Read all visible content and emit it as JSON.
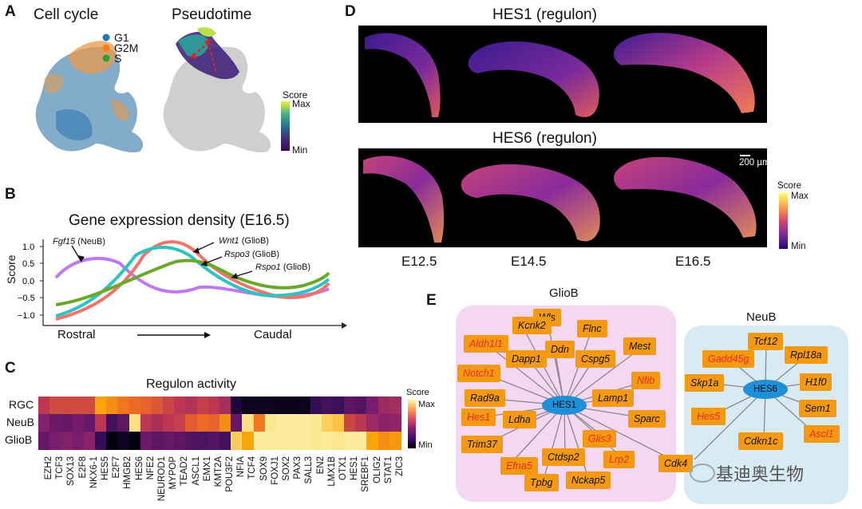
{
  "panel_letters": {
    "a": "A",
    "b": "B",
    "c": "C",
    "d": "D",
    "e": "E"
  },
  "panelA": {
    "cell_cycle_title": "Cell cycle",
    "pseudotime_title": "Pseudotime",
    "legend": [
      {
        "label": "G1",
        "color": "#1f77b4"
      },
      {
        "label": "G2M",
        "color": "#ff7f0e"
      },
      {
        "label": "S",
        "color": "#2ca02c"
      }
    ],
    "score_title": "Score",
    "score_max": "Max",
    "score_min": "Min"
  },
  "panelB": {
    "title": "Gene expression density (E16.5)",
    "ylabel": "Score",
    "xlabel_left": "Rostral",
    "xlabel_right": "Caudal",
    "annotations": [
      {
        "gene": "Fgf15",
        "group": " (NeuB)"
      },
      {
        "gene": "Wnt1",
        "group": " (GlioB)"
      },
      {
        "gene": "Rspo3",
        "group": " (GlioB)"
      },
      {
        "gene": "Rspo1",
        "group": " (GlioB)"
      }
    ]
  },
  "panelC": {
    "title": "Regulon activity",
    "rows": [
      "RGC",
      "NeuB",
      "GlioB"
    ],
    "columns": [
      "EZH2",
      "TCF3",
      "SOX13",
      "E2F8",
      "NKX6-1",
      "HES5",
      "E2F7",
      "HMGB2",
      "HES6",
      "NFE2",
      "NEUROD1",
      "MYPOP",
      "TEAD2",
      "ASCL1",
      "EMX1",
      "KMT2A",
      "POU3F2",
      "NFIA",
      "TCF4",
      "SOX9",
      "FOXJ1",
      "SOX2",
      "PAX3",
      "SALL3",
      "EN2",
      "LMX1B",
      "OTX1",
      "HES1",
      "SREBF1",
      "OLIG2",
      "STAT1",
      "ZIC3"
    ],
    "values": [
      [
        0.55,
        0.62,
        0.62,
        0.62,
        0.62,
        0.85,
        0.8,
        0.75,
        0.72,
        0.7,
        0.66,
        0.6,
        0.55,
        0.52,
        0.58,
        0.55,
        0.48,
        0.1,
        0.05,
        0.05,
        0.05,
        0.04,
        0.04,
        0.05,
        0.18,
        0.22,
        0.2,
        0.28,
        0.26,
        0.35,
        0.45,
        0.48
      ],
      [
        0.38,
        0.32,
        0.3,
        0.34,
        0.3,
        0.55,
        0.22,
        0.28,
        0.95,
        0.55,
        0.5,
        0.55,
        0.58,
        0.68,
        0.72,
        0.7,
        0.8,
        0.3,
        0.95,
        0.75,
        0.96,
        0.97,
        0.97,
        0.97,
        0.96,
        0.92,
        0.9,
        0.6,
        0.55,
        0.45,
        0.4,
        0.42
      ],
      [
        0.3,
        0.35,
        0.38,
        0.35,
        0.4,
        0.18,
        0.02,
        0.06,
        0.02,
        0.32,
        0.28,
        0.3,
        0.28,
        0.25,
        0.24,
        0.26,
        0.22,
        0.92,
        0.85,
        0.97,
        0.97,
        0.97,
        0.97,
        0.97,
        0.96,
        0.97,
        0.96,
        0.97,
        0.97,
        0.85,
        0.8,
        0.82
      ]
    ],
    "score_title": "Score",
    "score_max": "Max",
    "score_min": "Min"
  },
  "panelD": {
    "title_top": "HES1 (regulon)",
    "title_bottom": "HES6 (regulon)",
    "scalebar": "200 µm",
    "stages": [
      "E12.5",
      "E14.5",
      "E16.5"
    ],
    "score_title": "Score",
    "score_max": "Max",
    "score_min": "Min"
  },
  "panelE": {
    "glio_title": "GlioB",
    "neu_title": "NeuB",
    "hes1": "HES1",
    "hes6": "HES6",
    "glio_nodes": [
      {
        "label": "Wls",
        "red": false
      },
      {
        "label": "Kcnk2",
        "red": false
      },
      {
        "label": "Flnc",
        "red": false
      },
      {
        "label": "Aldh1l1",
        "red": true
      },
      {
        "label": "Ddn",
        "red": false
      },
      {
        "label": "Mest",
        "red": false
      },
      {
        "label": "Dapp1",
        "red": false
      },
      {
        "label": "Cspg5",
        "red": false
      },
      {
        "label": "Notch1",
        "red": true
      },
      {
        "label": "Nfib",
        "red": true
      },
      {
        "label": "Rad9a",
        "red": false
      },
      {
        "label": "Lamp1",
        "red": false
      },
      {
        "label": "Hes1",
        "red": true
      },
      {
        "label": "Sparc",
        "red": false
      },
      {
        "label": "Ldha",
        "red": false
      },
      {
        "label": "Trim37",
        "red": false
      },
      {
        "label": "Glis3",
        "red": true
      },
      {
        "label": "Ctdsp2",
        "red": false
      },
      {
        "label": "Lrp2",
        "red": true
      },
      {
        "label": "Efna5",
        "red": true
      },
      {
        "label": "Tpbg",
        "red": false
      },
      {
        "label": "Nckap5",
        "red": false
      },
      {
        "label": "Cdk4",
        "red": false
      }
    ],
    "neu_nodes": [
      {
        "label": "Tcf12",
        "red": false
      },
      {
        "label": "Gadd45g",
        "red": true
      },
      {
        "label": "Rpl18a",
        "red": false
      },
      {
        "label": "Skp1a",
        "red": false
      },
      {
        "label": "H1f0",
        "red": false
      },
      {
        "label": "Hes5",
        "red": true
      },
      {
        "label": "Sem1",
        "red": false
      },
      {
        "label": "Cdkn1c",
        "red": false
      },
      {
        "label": "Ascl1",
        "red": true
      }
    ]
  },
  "watermark": "基迪奥生物"
}
